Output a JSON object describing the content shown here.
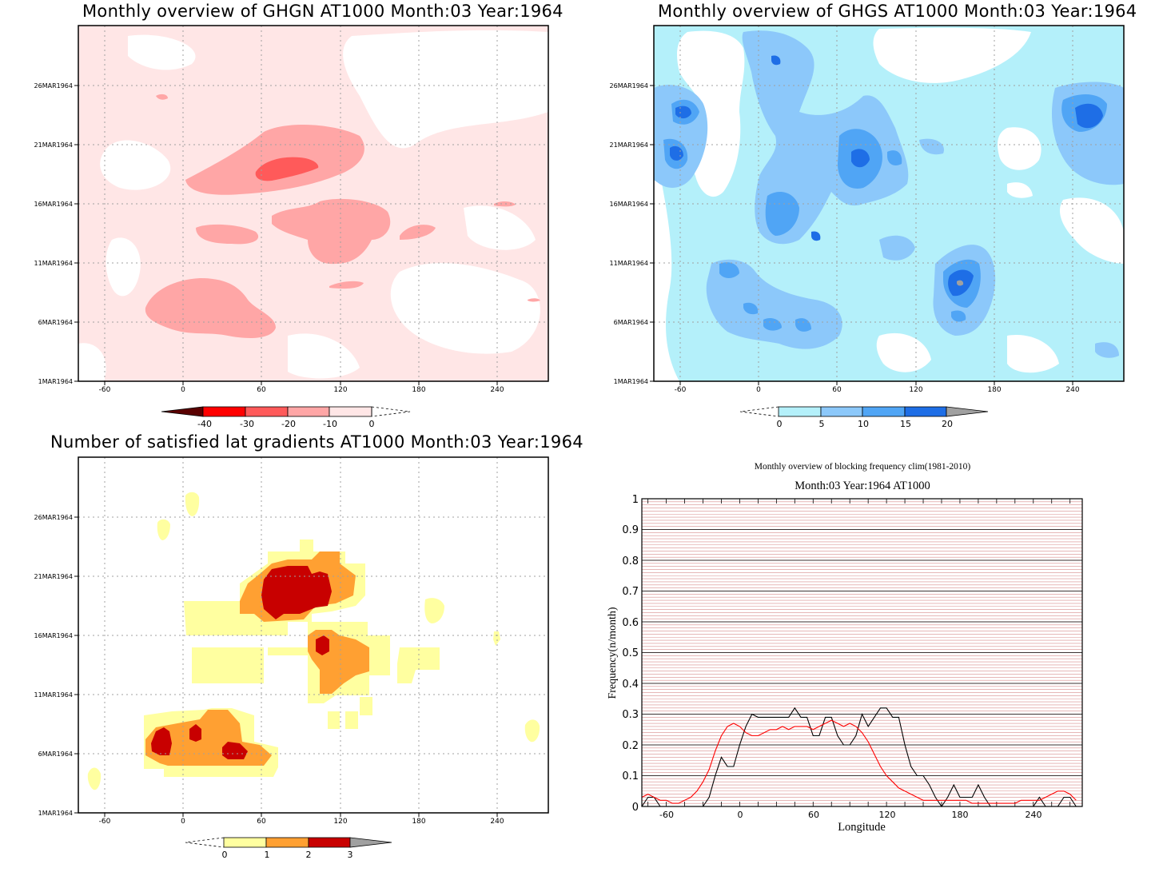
{
  "panels": {
    "ghgn": {
      "title": "Monthly overview of GHGN AT1000 Month:03 Year:1964",
      "colorbar_labels": [
        "-40",
        "-30",
        "-20",
        "-10",
        "0"
      ],
      "colorbar_colors": [
        "#5a0000",
        "#ff0000",
        "#ff5a5a",
        "#ffa6a6",
        "#ffe6e6"
      ]
    },
    "ghgs": {
      "title": "Monthly overview of GHGS AT1000 Month:03 Year:1964",
      "colorbar_labels": [
        "0",
        "5",
        "10",
        "15",
        "20"
      ],
      "colorbar_colors": [
        "#b4f0fa",
        "#8cc8fa",
        "#50a5f5",
        "#1e6ee6",
        "#a0a0a0"
      ]
    },
    "lat_grad": {
      "title": "Number of satisfied lat gradients AT1000 Month:03 Year:1964",
      "colorbar_labels": [
        "0",
        "1",
        "2",
        "3"
      ],
      "colorbar_colors": [
        "#ffffa0",
        "#ffa032",
        "#c80000",
        "#a0a0a0"
      ]
    },
    "blocking": {
      "title": "Monthly overview of blocking frequency clim(1981-2010)",
      "subtitle": "Month:03 Year:1964  AT1000",
      "xlabel": "Longitude",
      "ylabel": "Frequency(n/month)"
    }
  },
  "shared_axes": {
    "x_ticks": [
      "-60",
      "0",
      "60",
      "120",
      "180",
      "240"
    ],
    "y_ticks": [
      "1MAR1964",
      "6MAR1964",
      "11MAR1964",
      "16MAR1964",
      "21MAR1964",
      "26MAR1964"
    ]
  },
  "chart_data": [
    {
      "type": "heatmap",
      "title": "Monthly overview of GHGN AT1000 Month:03 Year:1964",
      "xlim": [
        -80,
        280
      ],
      "ylim": [
        "1MAR1964",
        "31MAR1964"
      ],
      "x_ticks": [
        -60,
        0,
        60,
        120,
        180,
        240
      ],
      "grid": true,
      "contour_levels": [
        -40,
        -30,
        -20,
        -10,
        0
      ],
      "legend": "bottom"
    },
    {
      "type": "heatmap",
      "title": "Monthly overview of GHGS AT1000 Month:03 Year:1964",
      "xlim": [
        -80,
        280
      ],
      "ylim": [
        "1MAR1964",
        "31MAR1964"
      ],
      "x_ticks": [
        -60,
        0,
        60,
        120,
        180,
        240
      ],
      "grid": true,
      "contour_levels": [
        0,
        5,
        10,
        15,
        20
      ],
      "legend": "bottom"
    },
    {
      "type": "heatmap",
      "title": "Number of satisfied lat gradients AT1000 Month:03 Year:1964",
      "xlim": [
        -80,
        280
      ],
      "ylim": [
        "1MAR1964",
        "31MAR1964"
      ],
      "x_ticks": [
        -60,
        0,
        60,
        120,
        180,
        240
      ],
      "grid": true,
      "contour_levels": [
        0,
        1,
        2,
        3
      ],
      "legend": "bottom"
    },
    {
      "type": "line",
      "title": "Monthly overview of blocking frequency clim(1981-2010)",
      "subtitle": "Month:03 Year:1964  AT1000",
      "xlabel": "Longitude",
      "ylabel": "Frequency(n/month)",
      "xlim": [
        -80,
        280
      ],
      "ylim": [
        0,
        1
      ],
      "x_ticks": [
        -60,
        0,
        60,
        120,
        180,
        240
      ],
      "y_ticks": [
        0,
        0.1,
        0.2,
        0.3,
        0.4,
        0.5,
        0.6,
        0.7,
        0.8,
        0.9,
        1
      ],
      "grid": true,
      "series": [
        {
          "color": "#000000",
          "x": [
            -80,
            -75,
            -70,
            -65,
            -60,
            -55,
            -50,
            -45,
            -40,
            -35,
            -30,
            -25,
            -20,
            -15,
            -10,
            -5,
            0,
            5,
            10,
            15,
            20,
            25,
            30,
            35,
            40,
            45,
            50,
            55,
            60,
            65,
            70,
            75,
            80,
            85,
            90,
            95,
            100,
            105,
            110,
            115,
            120,
            125,
            130,
            135,
            140,
            145,
            150,
            155,
            160,
            165,
            170,
            175,
            180,
            185,
            190,
            195,
            200,
            205,
            210,
            215,
            220,
            225,
            230,
            235,
            240,
            245,
            250,
            255,
            260,
            265,
            270,
            275
          ],
          "y": [
            0,
            0.03,
            0.03,
            0,
            0,
            0,
            0,
            0,
            0,
            0,
            0,
            0.03,
            0.1,
            0.16,
            0.13,
            0.13,
            0.2,
            0.26,
            0.3,
            0.29,
            0.29,
            0.29,
            0.29,
            0.29,
            0.29,
            0.32,
            0.29,
            0.29,
            0.23,
            0.23,
            0.29,
            0.29,
            0.23,
            0.2,
            0.2,
            0.23,
            0.3,
            0.26,
            0.29,
            0.32,
            0.32,
            0.29,
            0.29,
            0.2,
            0.13,
            0.1,
            0.1,
            0.07,
            0.03,
            0,
            0.03,
            0.07,
            0.03,
            0.03,
            0.03,
            0.07,
            0.03,
            0,
            0,
            0,
            0,
            0,
            0,
            0,
            0,
            0.03,
            0,
            0,
            0,
            0.03,
            0.03,
            0
          ],
          "values": [
            0,
            0.03,
            0.03,
            0,
            0,
            0,
            0,
            0,
            0,
            0,
            0,
            0.03,
            0.1,
            0.16,
            0.13,
            0.13,
            0.2,
            0.26,
            0.3,
            0.29,
            0.29,
            0.29,
            0.29,
            0.29,
            0.29,
            0.32,
            0.29,
            0.29,
            0.23,
            0.23,
            0.29,
            0.29,
            0.23,
            0.2,
            0.2,
            0.23,
            0.3,
            0.26,
            0.29,
            0.32,
            0.32,
            0.29,
            0.29,
            0.2,
            0.13,
            0.1,
            0.1,
            0.07,
            0.03,
            0,
            0.03,
            0.07,
            0.03,
            0.03,
            0.03,
            0.07,
            0.03,
            0,
            0,
            0,
            0,
            0,
            0,
            0,
            0,
            0.03,
            0,
            0,
            0,
            0.03,
            0.03,
            0
          ]
        },
        {
          "color": "#ff0000",
          "x": [
            -80,
            -75,
            -70,
            -65,
            -60,
            -55,
            -50,
            -45,
            -40,
            -35,
            -30,
            -25,
            -20,
            -15,
            -10,
            -5,
            0,
            5,
            10,
            15,
            20,
            25,
            30,
            35,
            40,
            45,
            50,
            55,
            60,
            65,
            70,
            75,
            80,
            85,
            90,
            95,
            100,
            105,
            110,
            115,
            120,
            125,
            130,
            135,
            140,
            145,
            150,
            155,
            160,
            165,
            170,
            175,
            180,
            185,
            190,
            195,
            200,
            205,
            210,
            215,
            220,
            225,
            230,
            235,
            240,
            245,
            250,
            255,
            260,
            265,
            270,
            275
          ],
          "y": [
            0.03,
            0.04,
            0.03,
            0.02,
            0.02,
            0.01,
            0.01,
            0.02,
            0.03,
            0.05,
            0.08,
            0.12,
            0.18,
            0.23,
            0.26,
            0.27,
            0.26,
            0.24,
            0.23,
            0.23,
            0.24,
            0.25,
            0.25,
            0.26,
            0.25,
            0.26,
            0.26,
            0.26,
            0.25,
            0.26,
            0.27,
            0.28,
            0.27,
            0.26,
            0.27,
            0.26,
            0.24,
            0.21,
            0.17,
            0.13,
            0.1,
            0.08,
            0.06,
            0.05,
            0.04,
            0.03,
            0.02,
            0.02,
            0.02,
            0.02,
            0.02,
            0.02,
            0.02,
            0.02,
            0.01,
            0.01,
            0.01,
            0.01,
            0.01,
            0.01,
            0.01,
            0.01,
            0.02,
            0.02,
            0.02,
            0.02,
            0.03,
            0.04,
            0.05,
            0.05,
            0.04,
            0.02
          ],
          "values": [
            0.03,
            0.04,
            0.03,
            0.02,
            0.02,
            0.01,
            0.01,
            0.02,
            0.03,
            0.05,
            0.08,
            0.12,
            0.18,
            0.23,
            0.26,
            0.27,
            0.26,
            0.24,
            0.23,
            0.23,
            0.24,
            0.25,
            0.25,
            0.26,
            0.25,
            0.26,
            0.26,
            0.26,
            0.25,
            0.26,
            0.27,
            0.28,
            0.27,
            0.26,
            0.27,
            0.26,
            0.24,
            0.21,
            0.17,
            0.13,
            0.1,
            0.08,
            0.06,
            0.05,
            0.04,
            0.03,
            0.02,
            0.02,
            0.02,
            0.02,
            0.02,
            0.02,
            0.02,
            0.02,
            0.01,
            0.01,
            0.01,
            0.01,
            0.01,
            0.01,
            0.01,
            0.01,
            0.02,
            0.02,
            0.02,
            0.02,
            0.03,
            0.04,
            0.05,
            0.05,
            0.04,
            0.02
          ]
        }
      ]
    }
  ]
}
